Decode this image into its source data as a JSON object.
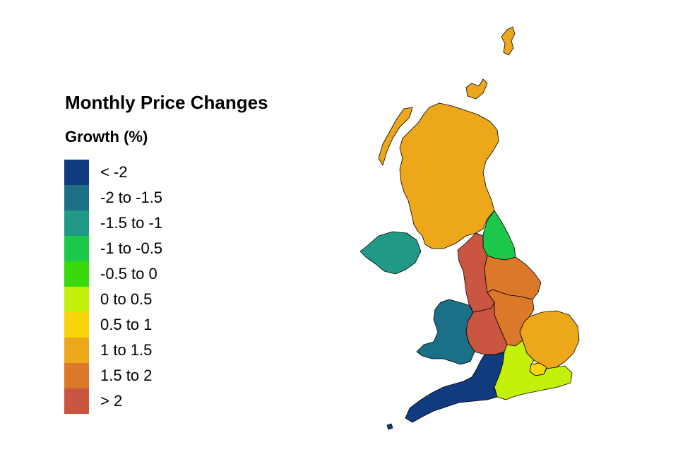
{
  "title": "Monthly Price Changes",
  "legend": {
    "title": "Growth (%)",
    "items": [
      {
        "label": "< -2",
        "color": "#103b7f"
      },
      {
        "label": "-2 to -1.5",
        "color": "#1b7087"
      },
      {
        "label": "-1.5 to -1",
        "color": "#209a86"
      },
      {
        "label": "-1 to -0.5",
        "color": "#1cc84a"
      },
      {
        "label": "-0.5 to 0",
        "color": "#3ad90b"
      },
      {
        "label": "0 to 0.5",
        "color": "#c4f10c"
      },
      {
        "label": "0.5 to 1",
        "color": "#f8d50b"
      },
      {
        "label": "1 to 1.5",
        "color": "#eca71b"
      },
      {
        "label": "1.5 to 2",
        "color": "#dc782a"
      },
      {
        "label": "> 2",
        "color": "#ca5540"
      }
    ]
  },
  "regions": [
    {
      "id": "scotland",
      "color": "#eca71b"
    },
    {
      "id": "shetland",
      "color": "#eca71b"
    },
    {
      "id": "orkney",
      "color": "#eca71b"
    },
    {
      "id": "western-isles",
      "color": "#eca71b"
    },
    {
      "id": "northern-ireland",
      "color": "#209a86"
    },
    {
      "id": "north-east",
      "color": "#1cc84a"
    },
    {
      "id": "north-west",
      "color": "#ca5540"
    },
    {
      "id": "yorkshire-and-the-humber",
      "color": "#dc782a"
    },
    {
      "id": "east-midlands",
      "color": "#dc782a"
    },
    {
      "id": "west-midlands",
      "color": "#ca5540"
    },
    {
      "id": "wales",
      "color": "#1b7087"
    },
    {
      "id": "east-of-england",
      "color": "#eca71b"
    },
    {
      "id": "london",
      "color": "#f8d50b"
    },
    {
      "id": "south-east",
      "color": "#c4f10c"
    },
    {
      "id": "south-west",
      "color": "#103b7f"
    }
  ]
}
